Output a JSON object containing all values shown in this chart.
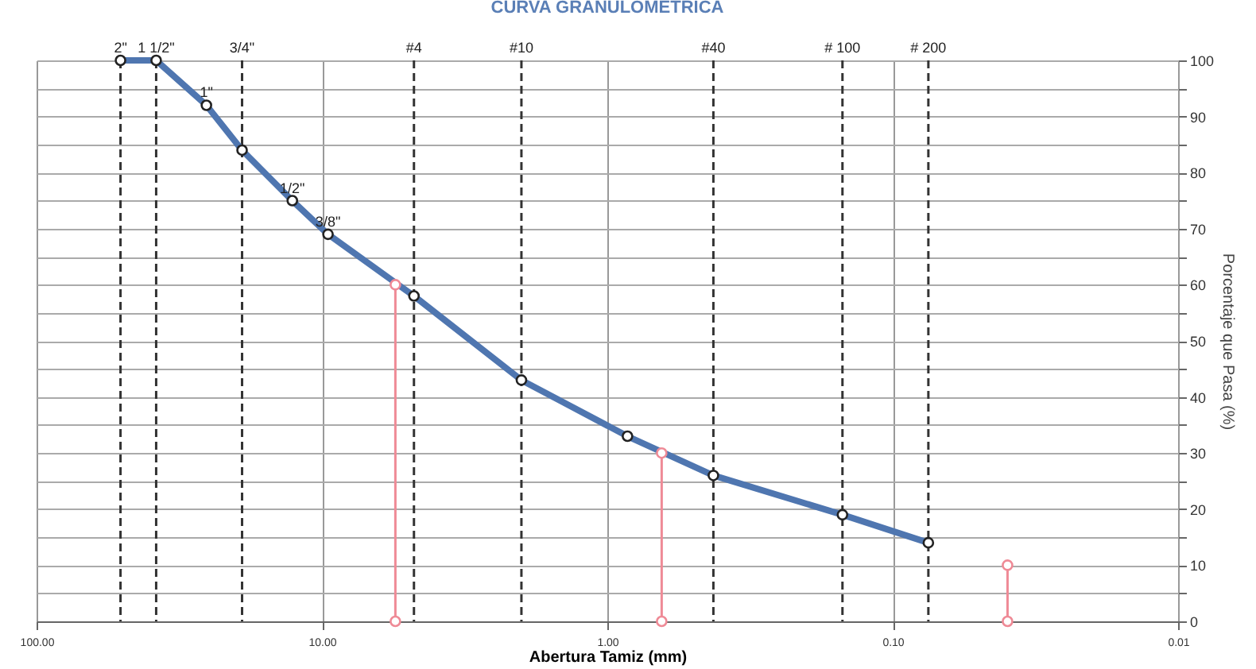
{
  "chart_data": {
    "type": "line",
    "title": "CURVA GRANULOMETRICA",
    "xlabel": "Abertura Tamiz (mm)",
    "ylabel": "Porcentaje que Pasa (%)",
    "log": "x",
    "grid": true,
    "marker": "circle",
    "line_style": "solid",
    "xlim": [
      100,
      0.01
    ],
    "xticks": [
      {
        "value": 100,
        "label": "100.00"
      },
      {
        "value": 10,
        "label": "10.00"
      },
      {
        "value": 1,
        "label": "1.00"
      },
      {
        "value": 0.1,
        "label": "0.10"
      },
      {
        "value": 0.01,
        "label": "0.01"
      }
    ],
    "annotations": [
      {
        "text": "2\"",
        "x": 50.8,
        "y": 100
      },
      {
        "text": "1 1/2\"",
        "x": 38.1,
        "y": 100
      },
      {
        "text": "1\"",
        "x": 25.4,
        "y": 92
      },
      {
        "text": "3/4\"",
        "x": 19.05,
        "y": 100
      },
      {
        "text": "1/2\"",
        "x": 12.7,
        "y": 75
      },
      {
        "text": "3/8\"",
        "x": 9.525,
        "y": 69
      },
      {
        "text": "#4",
        "x": 4.76,
        "y": 100
      },
      {
        "text": "#10",
        "x": 2.0,
        "y": 100
      },
      {
        "text": "#40",
        "x": 0.425,
        "y": 100
      },
      {
        "text": "# 100",
        "x": 0.15,
        "y": 100
      },
      {
        "text": "# 200",
        "x": 0.075,
        "y": 100
      }
    ],
    "ylim": [
      0,
      100
    ],
    "yticks": [
      0,
      {
        "value": 5,
        "label": null
      },
      10,
      {
        "value": 15,
        "label": null
      },
      20,
      {
        "value": 25,
        "label": null
      },
      30,
      {
        "value": 35,
        "label": null
      },
      40,
      {
        "value": 45,
        "label": null
      },
      50,
      {
        "value": 55,
        "label": null
      },
      60,
      {
        "value": 65,
        "label": null
      },
      70,
      {
        "value": 75,
        "label": null
      },
      80,
      {
        "value": 85,
        "label": null
      },
      90,
      {
        "value": 95,
        "label": null
      },
      100
    ],
    "x": [
      50.8,
      38.1,
      25.4,
      19.05,
      12.7,
      9.525,
      4.76,
      2.0,
      0.85,
      0.425,
      0.15,
      0.075
    ],
    "series": [
      {
        "color": "#4f76b0",
        "values": [
          100,
          100,
          92,
          84,
          75,
          69,
          58,
          43,
          33,
          26,
          19,
          14
        ]
      },
      {
        "color": "#ef8a96",
        "x": [
          5.53,
          5.53
        ],
        "values": [
          0,
          60
        ]
      },
      {
        "color": "#ef8a96",
        "x": [
          0.645,
          0.645
        ],
        "values": [
          0,
          30
        ]
      },
      {
        "color": "#ef8a96",
        "x": [
          0.0396,
          0.0396
        ],
        "values": [
          0,
          10
        ]
      }
    ],
    "ref_lines": [
      {
        "axis": "x",
        "value": 50.8,
        "color": "#333333",
        "line_style": "dashed"
      },
      {
        "axis": "x",
        "value": 38.1,
        "color": "#333333",
        "line_style": "dashed"
      },
      {
        "axis": "x",
        "value": 19.05,
        "color": "#333333",
        "line_style": "dashed"
      },
      {
        "axis": "x",
        "value": 4.76,
        "color": "#333333",
        "line_style": "dashed"
      },
      {
        "axis": "x",
        "value": 2.0,
        "color": "#333333",
        "line_style": "dashed"
      },
      {
        "axis": "x",
        "value": 0.425,
        "color": "#333333",
        "line_style": "dashed"
      },
      {
        "axis": "x",
        "value": 0.15,
        "color": "#333333",
        "line_style": "dashed"
      },
      {
        "axis": "x",
        "value": 0.075,
        "color": "#333333",
        "line_style": "dashed"
      }
    ]
  }
}
